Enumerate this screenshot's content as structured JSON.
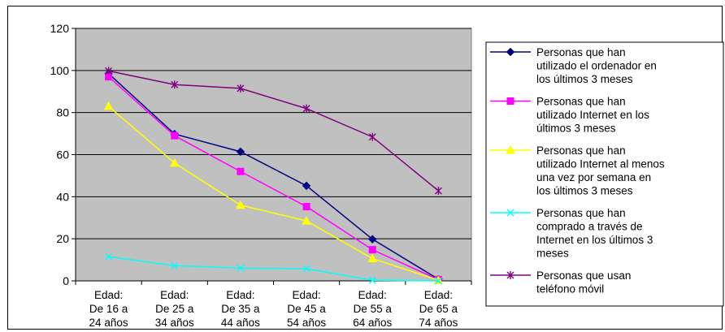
{
  "chart_data": {
    "type": "line",
    "title": "",
    "xlabel": "",
    "ylabel": "",
    "ylim": [
      0,
      120
    ],
    "yticks": [
      "0",
      "20",
      "40",
      "60",
      "80",
      "100",
      "120"
    ],
    "categories": [
      [
        "Edad:",
        "De 16 a",
        "24 años"
      ],
      [
        "Edad:",
        "De 25 a",
        "34 años"
      ],
      [
        "Edad:",
        "De 35 a",
        "44 años"
      ],
      [
        "Edad:",
        "De 45 a",
        "54 años"
      ],
      [
        "Edad:",
        "De 55 a",
        "64 años"
      ],
      [
        "Edad:",
        "De 65 a",
        "74 años"
      ]
    ],
    "grid": true,
    "plot_background": "#c0c0c0",
    "legend_position": "right",
    "series": [
      {
        "name": [
          "Personas que han",
          "utilizado el ordenador en",
          "los últimos 3 meses"
        ],
        "values": [
          98.5,
          69.8,
          61.4,
          45.2,
          19.8,
          0.8
        ],
        "color": "#000080",
        "marker": "diamond"
      },
      {
        "name": [
          "Personas que han",
          "utilizado Internet en los",
          "últimos 3 meses"
        ],
        "values": [
          97,
          69,
          52,
          35.3,
          14.8,
          0.6
        ],
        "color": "#ff00ff",
        "marker": "square"
      },
      {
        "name": [
          "Personas que han",
          "utilizado Internet al menos",
          "una vez por semana en",
          "los últimos 3 meses"
        ],
        "values": [
          83,
          56,
          36,
          28.5,
          10.6,
          0.3
        ],
        "color": "#ffff00",
        "marker": "triangle"
      },
      {
        "name": [
          "Personas que han",
          "comprado a través de",
          "Internet en los últimos 3",
          "meses"
        ],
        "values": [
          11.5,
          7.2,
          6.1,
          5.8,
          0.3,
          0
        ],
        "color": "#00ffff",
        "marker": "x"
      },
      {
        "name": [
          "Personas que usan",
          "teléfono móvil"
        ],
        "values": [
          99.8,
          93.3,
          91.5,
          81.9,
          68.4,
          42.8
        ],
        "color": "#800080",
        "marker": "star"
      }
    ]
  }
}
